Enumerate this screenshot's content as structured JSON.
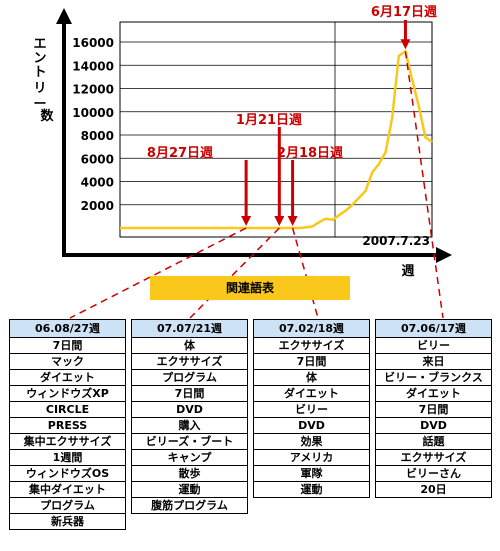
{
  "chart_data": {
    "type": "line",
    "ylabel": "エントリー数",
    "xlabel": "週",
    "ylim": [
      0,
      18000
    ],
    "yticks": [
      2000,
      4000,
      6000,
      8000,
      10000,
      12000,
      14000,
      16000
    ],
    "date_label": "2007.7.23",
    "grid": true,
    "series": [
      {
        "color": "#f9c81a",
        "x": [
          0,
          1,
          2,
          3,
          4,
          5,
          6,
          7,
          8,
          9,
          10,
          11,
          12,
          13,
          14,
          15,
          16,
          17,
          18,
          19,
          20,
          21,
          22,
          23,
          24,
          25,
          26,
          27,
          28,
          29,
          30,
          31,
          32,
          33,
          34,
          35,
          36,
          37,
          38,
          39,
          40,
          41,
          42,
          43,
          44,
          45,
          46,
          47
        ],
        "values": [
          0,
          0,
          0,
          0,
          0,
          0,
          0,
          0,
          0,
          0,
          0,
          0,
          0,
          0,
          0,
          0,
          0,
          0,
          0,
          0,
          0,
          0,
          0,
          0,
          0,
          0,
          0,
          0,
          50,
          150,
          500,
          800,
          700,
          1100,
          1500,
          2000,
          2600,
          3200,
          4800,
          5500,
          6500,
          9500,
          14800,
          15200,
          12800,
          10500,
          7800,
          7400
        ]
      }
    ],
    "annotations": [
      {
        "label": "8月27日週",
        "x_index": 19
      },
      {
        "label": "1月21日週",
        "x_index": 24
      },
      {
        "label": "2月18日週",
        "x_index": 26
      },
      {
        "label": "6月17日週",
        "x_index": 43
      }
    ]
  },
  "related_label": "関連語表",
  "tables": [
    {
      "header": "06.08/27週",
      "items": [
        "7日間",
        "マック",
        "ダイエット",
        "ウィンドウズXP",
        "CIRCLE",
        "PRESS",
        "集中エクササイズ",
        "1週間",
        "ウィンドウズOS",
        "集中ダイエット",
        "プログラム",
        "新兵器"
      ]
    },
    {
      "header": "07.07/21週",
      "items": [
        "体",
        "エクササイズ",
        "プログラム",
        "7日間",
        "DVD",
        "購入",
        "ビリーズ・ブート",
        "キャンプ",
        "散歩",
        "運動",
        "腹筋プログラム"
      ]
    },
    {
      "header": "07.02/18週",
      "items": [
        "エクササイズ",
        "7日間",
        "体",
        "ダイエット",
        "ビリー",
        "DVD",
        "効果",
        "アメリカ",
        "軍隊",
        "運動"
      ]
    },
    {
      "header": "07.06/17週",
      "items": [
        "ビリー",
        "来日",
        "ビリー・ブランクス",
        "ダイエット",
        "7日間",
        "DVD",
        "話題",
        "エクササイズ",
        "ビリーさん",
        "20日"
      ]
    }
  ]
}
